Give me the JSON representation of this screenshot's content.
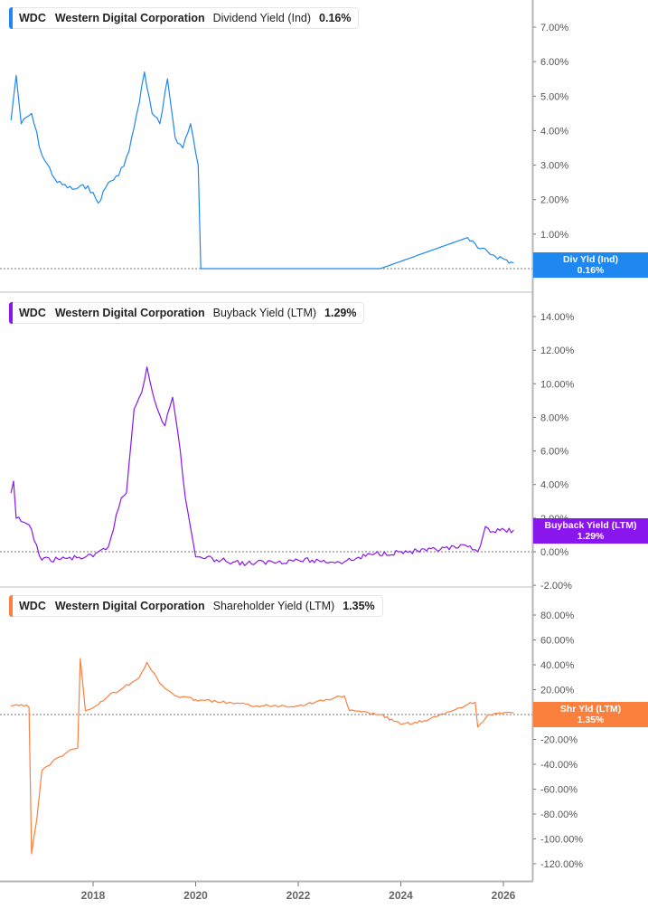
{
  "panels": [
    {
      "ticker": "WDC",
      "company": "Western Digital Corporation",
      "metric": "Dividend Yield (Ind)",
      "value": "0.16%",
      "color": "#1e88f0",
      "tag_label": "Div Yld (Ind)",
      "tag_value": "0.16%",
      "y_ticks": [
        "7.00%",
        "6.00%",
        "5.00%",
        "4.00%",
        "3.00%",
        "2.00%",
        "1.00%",
        "0.00%"
      ]
    },
    {
      "ticker": "WDC",
      "company": "Western Digital Corporation",
      "metric": "Buyback Yield (LTM)",
      "value": "1.29%",
      "color": "#8a16ee",
      "tag_label": "Buyback Yield (LTM)",
      "tag_value": "1.29%",
      "y_ticks": [
        "14.00%",
        "12.00%",
        "10.00%",
        "8.00%",
        "6.00%",
        "4.00%",
        "2.00%",
        "0.00%",
        "-2.00%"
      ]
    },
    {
      "ticker": "WDC",
      "company": "Western Digital Corporation",
      "metric": "Shareholder Yield (LTM)",
      "value": "1.35%",
      "color": "#fb7f3d",
      "tag_label": "Shr Yld (LTM)",
      "tag_value": "1.35%",
      "y_ticks": [
        "80.00%",
        "60.00%",
        "40.00%",
        "20.00%",
        "0.00%",
        "-20.00%",
        "-40.00%",
        "-60.00%",
        "-80.00%",
        "-100.00%",
        "-120.00%"
      ]
    }
  ],
  "x_axis": {
    "ticks": [
      "2018",
      "2020",
      "2022",
      "2024",
      "2026"
    ]
  },
  "chart_data": [
    {
      "type": "line",
      "title": "WDC Western Digital Corporation Dividend Yield (Ind) 0.16%",
      "xlabel": "",
      "ylabel": "Dividend Yield (%)",
      "ylim": [
        -0.2,
        7.8
      ],
      "grid": false,
      "legend_position": "top-left",
      "x": [
        2016.4,
        2016.5,
        2016.6,
        2016.8,
        2017.0,
        2017.3,
        2017.6,
        2017.9,
        2018.1,
        2018.3,
        2018.5,
        2018.7,
        2018.9,
        2019.0,
        2019.15,
        2019.3,
        2019.45,
        2019.6,
        2019.75,
        2019.9,
        2020.05,
        2020.1,
        2023.6,
        2025.3,
        2025.5,
        2025.8,
        2026.2
      ],
      "series": [
        {
          "name": "Dividend Yield (Ind)",
          "values": [
            4.3,
            5.6,
            4.2,
            4.5,
            3.3,
            2.5,
            2.3,
            2.4,
            1.9,
            2.5,
            2.7,
            3.4,
            4.8,
            5.7,
            4.5,
            4.2,
            5.5,
            3.8,
            3.5,
            4.2,
            3.0,
            0.0,
            0.0,
            0.9,
            0.6,
            0.4,
            0.16
          ]
        }
      ]
    },
    {
      "type": "line",
      "title": "WDC Western Digital Corporation Buyback Yield (LTM) 1.29%",
      "xlabel": "",
      "ylabel": "Buyback Yield (%)",
      "ylim": [
        -2.4,
        15.5
      ],
      "grid": false,
      "legend_position": "top-left",
      "x": [
        2016.4,
        2016.45,
        2016.5,
        2016.6,
        2016.75,
        2017.0,
        2017.5,
        2018.0,
        2018.3,
        2018.55,
        2018.65,
        2018.8,
        2018.95,
        2019.05,
        2019.2,
        2019.4,
        2019.55,
        2019.7,
        2019.8,
        2020.0,
        2020.5,
        2021.0,
        2022.0,
        2022.9,
        2023.5,
        2024.5,
        2025.3,
        2025.5,
        2025.65,
        2025.8,
        2026.2
      ],
      "series": [
        {
          "name": "Buyback Yield (LTM)",
          "values": [
            3.5,
            4.2,
            2.0,
            1.8,
            1.6,
            -0.5,
            -0.4,
            -0.3,
            0.3,
            3.2,
            3.5,
            8.5,
            9.5,
            11.0,
            9.0,
            7.5,
            9.2,
            6.0,
            3.2,
            -0.3,
            -0.5,
            -0.7,
            -0.5,
            -0.6,
            -0.1,
            0.05,
            0.3,
            0.0,
            1.5,
            1.2,
            1.29
          ]
        }
      ]
    },
    {
      "type": "line",
      "title": "WDC Western Digital Corporation Shareholder Yield (LTM) 1.35%",
      "xlabel": "",
      "ylabel": "Shareholder Yield (%)",
      "ylim": [
        -128,
        98
      ],
      "grid": false,
      "legend_position": "top-left",
      "x": [
        2016.4,
        2016.6,
        2016.75,
        2016.8,
        2016.9,
        2017.0,
        2017.3,
        2017.5,
        2017.7,
        2017.75,
        2017.85,
        2018.1,
        2018.3,
        2018.6,
        2018.9,
        2019.05,
        2019.3,
        2019.6,
        2020.0,
        2020.5,
        2021.2,
        2022.0,
        2022.9,
        2023.0,
        2023.6,
        2024.0,
        2024.5,
        2025.3,
        2025.45,
        2025.5,
        2025.7,
        2026.2
      ],
      "series": [
        {
          "name": "Shareholder Yield (LTM)",
          "values": [
            7,
            8,
            6,
            -112,
            -85,
            -45,
            -35,
            -30,
            -27,
            45,
            3,
            8,
            15,
            22,
            30,
            42,
            25,
            15,
            12,
            10,
            7,
            7,
            15,
            3,
            0,
            -8,
            -5,
            8,
            10,
            -10,
            0,
            1.35
          ]
        }
      ]
    }
  ]
}
